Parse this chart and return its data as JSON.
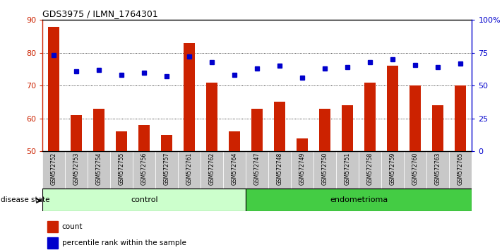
{
  "title": "GDS3975 / ILMN_1764301",
  "samples": [
    "GSM572752",
    "GSM572753",
    "GSM572754",
    "GSM572755",
    "GSM572756",
    "GSM572757",
    "GSM572761",
    "GSM572762",
    "GSM572764",
    "GSM572747",
    "GSM572748",
    "GSM572749",
    "GSM572750",
    "GSM572751",
    "GSM572758",
    "GSM572759",
    "GSM572760",
    "GSM572763",
    "GSM572765"
  ],
  "count_values": [
    88,
    61,
    63,
    56,
    58,
    55,
    83,
    71,
    56,
    63,
    65,
    54,
    63,
    64,
    71,
    76,
    70,
    64,
    70
  ],
  "percentile_values": [
    73,
    61,
    62,
    58,
    60,
    57,
    72,
    68,
    58,
    63,
    65,
    56,
    63,
    64,
    68,
    70,
    66,
    64,
    67
  ],
  "control_count": 9,
  "endometrioma_count": 10,
  "ylim_left": [
    50,
    90
  ],
  "ylim_right": [
    0,
    100
  ],
  "yticks_left": [
    50,
    60,
    70,
    80,
    90
  ],
  "yticks_right": [
    0,
    25,
    50,
    75,
    100
  ],
  "ytick_labels_right": [
    "0",
    "25",
    "50",
    "75",
    "100%"
  ],
  "bar_color": "#cc2200",
  "dot_color": "#0000cc",
  "control_bg": "#ccffcc",
  "endometrioma_bg": "#44cc44",
  "label_bg": "#c8c8c8",
  "bar_width": 0.5
}
